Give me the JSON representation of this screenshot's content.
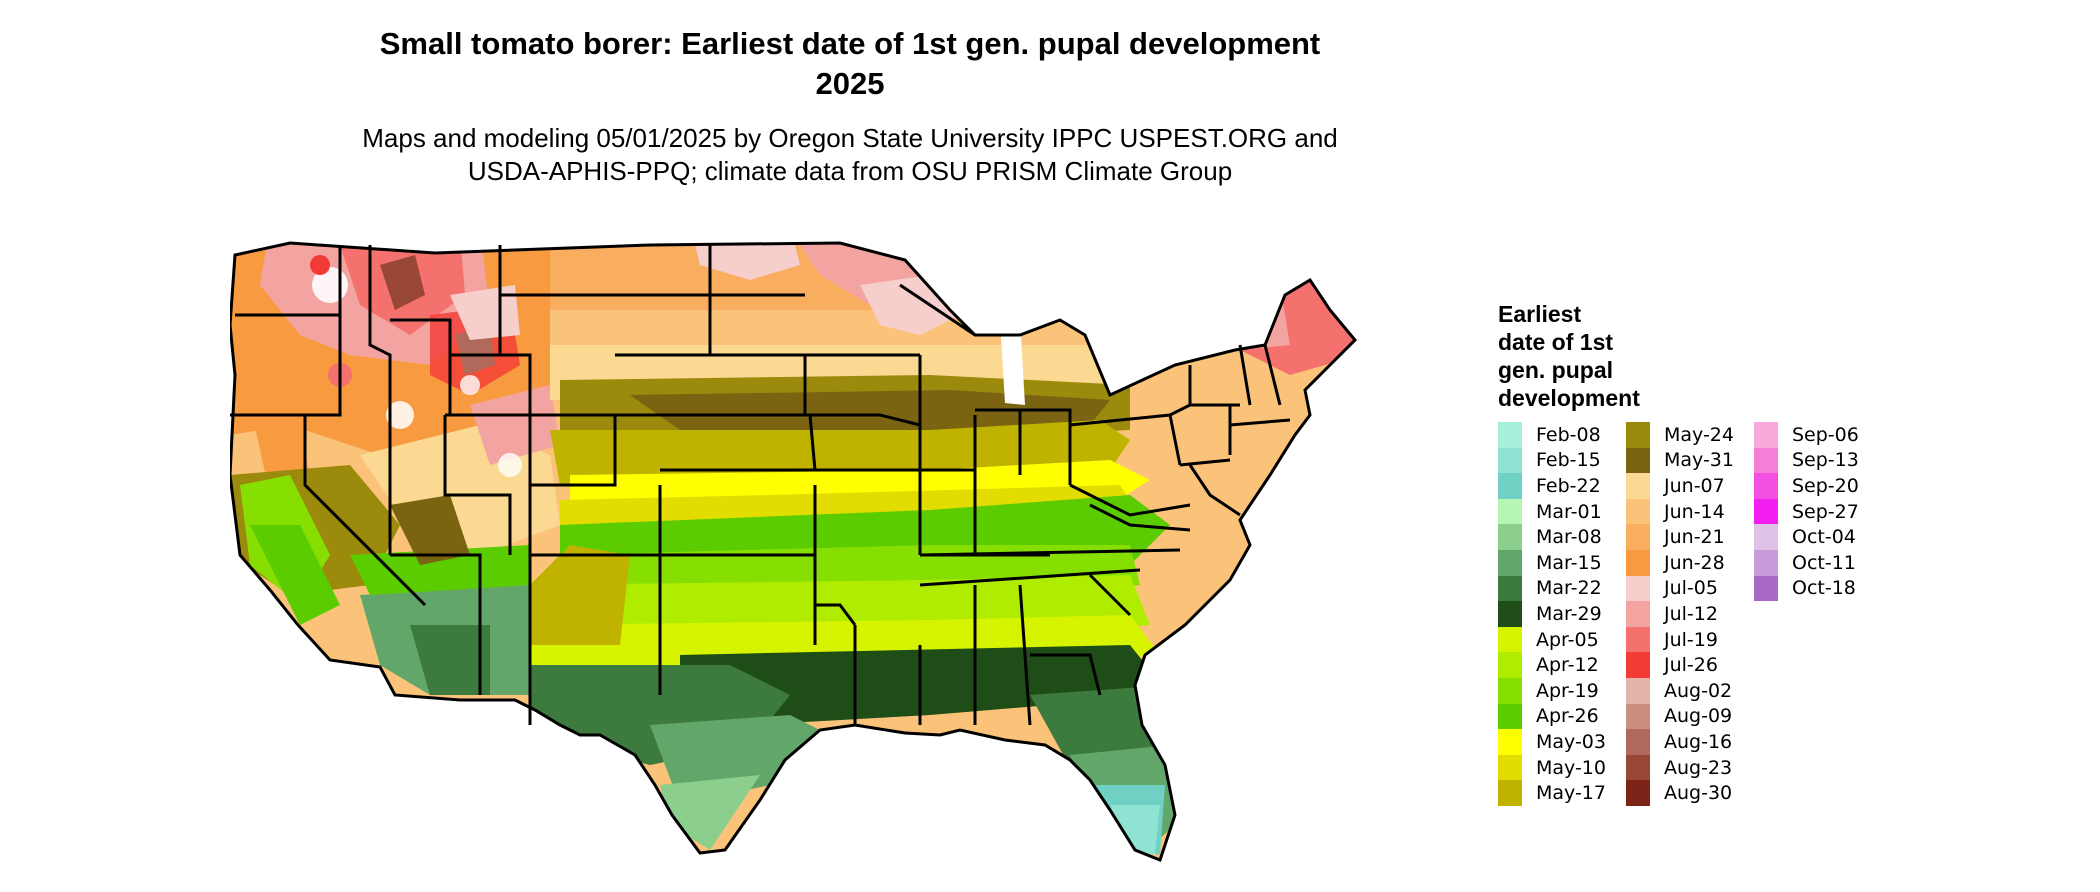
{
  "title": {
    "line1": "Small tomato borer: Earliest date of 1st gen. pupal development",
    "line2": "2025"
  },
  "subtitle": {
    "line1": "Maps and modeling 05/01/2025 by Oregon State University IPPC USPEST.ORG and",
    "line2": "USDA-APHIS-PPQ; climate data from OSU PRISM Climate Group"
  },
  "legend": {
    "title_lines": [
      "Earliest",
      "date of 1st",
      "gen. pupal",
      "development"
    ],
    "columns": [
      [
        {
          "label": "Feb-08",
          "color": "#a8f0dc"
        },
        {
          "label": "Feb-15",
          "color": "#8ee3d3"
        },
        {
          "label": "Feb-22",
          "color": "#6fd0c4"
        },
        {
          "label": "Mar-01",
          "color": "#b7f5b4"
        },
        {
          "label": "Mar-08",
          "color": "#8ccf8d"
        },
        {
          "label": "Mar-15",
          "color": "#63a66a"
        },
        {
          "label": "Mar-22",
          "color": "#3d7a3d"
        },
        {
          "label": "Mar-29",
          "color": "#1e4d17"
        },
        {
          "label": "Apr-05",
          "color": "#d6f400"
        },
        {
          "label": "Apr-12",
          "color": "#b0ec00"
        },
        {
          "label": "Apr-19",
          "color": "#86df00"
        },
        {
          "label": "Apr-26",
          "color": "#5acc00"
        },
        {
          "label": "May-03",
          "color": "#ffff00"
        },
        {
          "label": "May-10",
          "color": "#e2dc00"
        },
        {
          "label": "May-17",
          "color": "#bfb300"
        }
      ],
      [
        {
          "label": "May-24",
          "color": "#9c8a0c"
        },
        {
          "label": "May-31",
          "color": "#7a6412"
        },
        {
          "label": "Jun-07",
          "color": "#fbd992"
        },
        {
          "label": "Jun-14",
          "color": "#fbc37a"
        },
        {
          "label": "Jun-21",
          "color": "#f9ad5e"
        },
        {
          "label": "Jun-28",
          "color": "#f79a40"
        },
        {
          "label": "Jul-05",
          "color": "#f6cfcc"
        },
        {
          "label": "Jul-12",
          "color": "#f3a3a0"
        },
        {
          "label": "Jul-19",
          "color": "#f4716d"
        },
        {
          "label": "Jul-26",
          "color": "#f23a36"
        },
        {
          "label": "Aug-02",
          "color": "#e2b3a6"
        },
        {
          "label": "Aug-09",
          "color": "#c98e7f"
        },
        {
          "label": "Aug-16",
          "color": "#b0695a"
        },
        {
          "label": "Aug-23",
          "color": "#984635"
        },
        {
          "label": "Aug-30",
          "color": "#7e2317"
        }
      ],
      [
        {
          "label": "Sep-06",
          "color": "#f7a9dc"
        },
        {
          "label": "Sep-13",
          "color": "#f57fd8"
        },
        {
          "label": "Sep-20",
          "color": "#f44fe3"
        },
        {
          "label": "Sep-27",
          "color": "#f31ff0"
        },
        {
          "label": "Oct-04",
          "color": "#e0c1e8"
        },
        {
          "label": "Oct-11",
          "color": "#c79ad9"
        },
        {
          "label": "Oct-18",
          "color": "#a868c6"
        }
      ]
    ]
  }
}
